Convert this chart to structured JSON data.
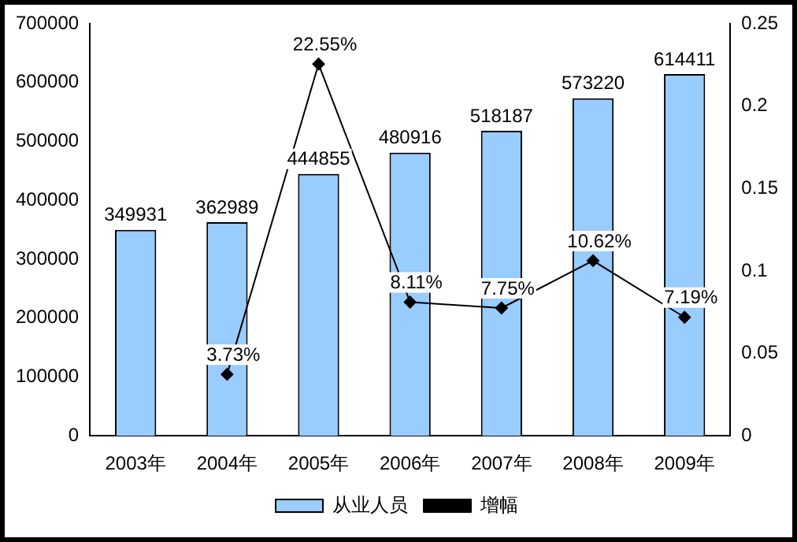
{
  "chart_data": {
    "type": "bar",
    "categories": [
      "2003年",
      "2004年",
      "2005年",
      "2006年",
      "2007年",
      "2008年",
      "2009年"
    ],
    "series": [
      {
        "name": "从业人员",
        "color": "#99ccff",
        "values": [
          349931,
          362989,
          444855,
          480916,
          518187,
          573220,
          614411
        ],
        "value_labels": [
          "349931",
          "362989",
          "444855",
          "480916",
          "518187",
          "573220",
          "614411"
        ]
      },
      {
        "name": "增幅",
        "type": "line",
        "axis": "y2",
        "color": "#000000",
        "values": [
          null,
          0.0373,
          0.2255,
          0.0811,
          0.0775,
          0.1062,
          0.0719
        ],
        "value_labels": [
          null,
          "3.73%",
          "22.55%",
          "8.11%",
          "7.75%",
          "10.62%",
          "7.19%"
        ]
      }
    ],
    "ylim": [
      0,
      700000
    ],
    "yticks": [
      0,
      100000,
      200000,
      300000,
      400000,
      500000,
      600000,
      700000
    ],
    "y2lim": [
      0,
      0.25
    ],
    "y2ticks": [
      0,
      0.05,
      0.1,
      0.15,
      0.2,
      0.25
    ],
    "legend": "bottom",
    "marker": "diamond",
    "line_style": "solid",
    "grid": false
  }
}
